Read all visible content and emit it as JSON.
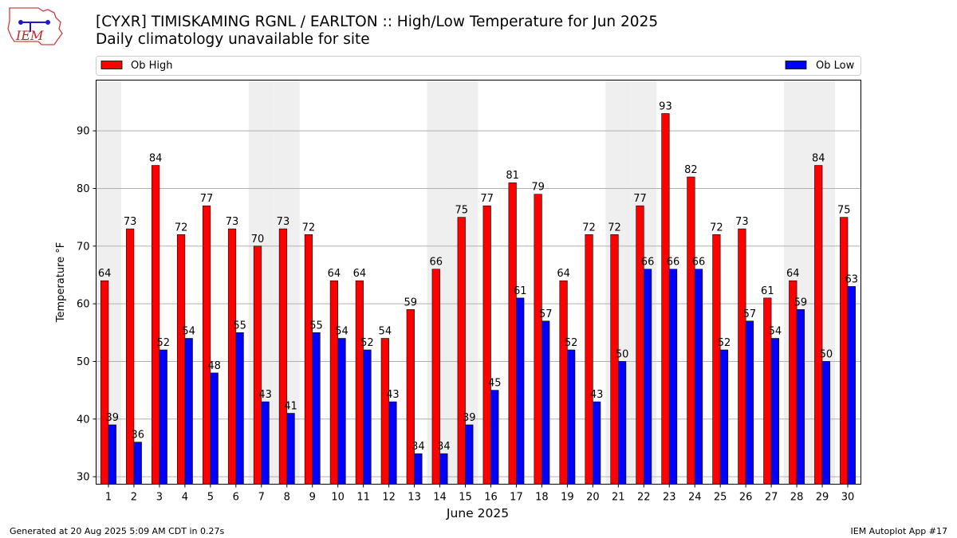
{
  "header": {
    "title_line_1": "[CYXR] TIMISKAMING RGNL / EARLTON :: High/Low Temperature for Jun 2025",
    "title_line_2": "Daily climatology unavailable for site",
    "logo_text": "IEM"
  },
  "footer": {
    "generated": "Generated at 20 Aug 2025 5:09 AM CDT in 0.27s",
    "app": "IEM Autoplot App #17"
  },
  "colors": {
    "high": "#ff0000",
    "low": "#0000ff",
    "weekend_band": "#efefef",
    "grid": "#b0b0b0"
  },
  "chart_data": {
    "type": "bar",
    "title": "[CYXR] TIMISKAMING RGNL / EARLTON :: High/Low Temperature for Jun 2025",
    "subtitle": "Daily climatology unavailable for site",
    "xlabel": "June 2025",
    "ylabel": "Temperature °F",
    "categories": [
      "1",
      "2",
      "3",
      "4",
      "5",
      "6",
      "7",
      "8",
      "9",
      "10",
      "11",
      "12",
      "13",
      "14",
      "15",
      "16",
      "17",
      "18",
      "19",
      "20",
      "21",
      "22",
      "23",
      "24",
      "25",
      "26",
      "27",
      "28",
      "29",
      "30"
    ],
    "series": [
      {
        "name": "Ob High",
        "color": "#ff0000",
        "values": [
          64,
          73,
          84,
          72,
          77,
          73,
          70,
          73,
          72,
          64,
          64,
          54,
          59,
          66,
          75,
          77,
          81,
          79,
          64,
          72,
          72,
          77,
          93,
          82,
          72,
          73,
          61,
          64,
          84,
          75
        ]
      },
      {
        "name": "Ob Low",
        "color": "#0000ff",
        "values": [
          39,
          36,
          52,
          54,
          48,
          55,
          43,
          41,
          55,
          54,
          52,
          43,
          34,
          34,
          39,
          45,
          61,
          57,
          52,
          43,
          50,
          66,
          66,
          66,
          52,
          57,
          54,
          59,
          50,
          63
        ]
      }
    ],
    "bar_labels": {
      "high": [
        64,
        73,
        84,
        72,
        77,
        73,
        70,
        73,
        72,
        64,
        64,
        54,
        59,
        66,
        75,
        77,
        81,
        79,
        64,
        72,
        72,
        77,
        93,
        82,
        72,
        73,
        61,
        64,
        84,
        75
      ],
      "low": [
        39,
        36,
        52,
        54,
        48,
        55,
        43,
        41,
        55,
        54,
        52,
        43,
        34,
        34,
        39,
        45,
        61,
        57,
        52,
        43,
        50,
        66,
        66,
        66,
        52,
        57,
        54,
        59,
        50,
        63
      ]
    },
    "weekend_days": [
      1,
      7,
      8,
      14,
      15,
      21,
      22,
      28,
      29
    ],
    "ylim": [
      28.7,
      98.8
    ],
    "yticks": [
      30,
      40,
      50,
      60,
      70,
      80,
      90
    ],
    "grid": true,
    "legend_placement": "top"
  }
}
